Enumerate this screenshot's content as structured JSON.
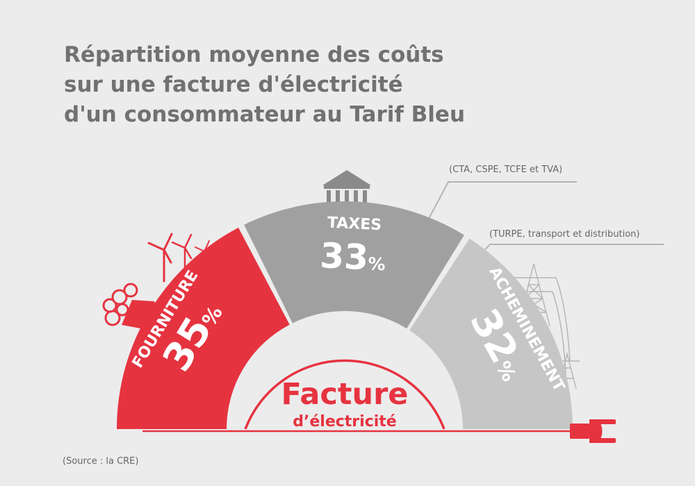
{
  "chart_data": {
    "type": "pie",
    "title_lines": [
      "Répartition moyenne des coûts",
      "sur une facture d'électricité",
      "d'un consommateur au Tarif Bleu"
    ],
    "center_label": {
      "line1": "Facture",
      "line2": "d’électricité"
    },
    "slices": [
      {
        "label": "FOURNITURE",
        "value": 35,
        "value_text": "35",
        "unit": "%",
        "color": "#e63340",
        "annotation": ""
      },
      {
        "label": "TAXES",
        "value": 33,
        "value_text": "33",
        "unit": "%",
        "color": "#a0a0a0",
        "annotation": "(CTA, CSPE, TCFE et TVA)"
      },
      {
        "label": "ACHEMINEMENT",
        "value": 32,
        "value_text": "32",
        "unit": "%",
        "color": "#c6c6c6",
        "annotation": "(TURPE, transport et distribution)"
      }
    ],
    "source": "(Source : la CRE)"
  },
  "colors": {
    "background": "#ececec",
    "accent_red": "#e63340",
    "text_grey": "#717171",
    "icon_grey": "#b3b3b3"
  },
  "icons": [
    "factory-icon",
    "wind-turbine-icon",
    "government-building-icon",
    "power-pylon-icon",
    "electric-plug-icon"
  ]
}
